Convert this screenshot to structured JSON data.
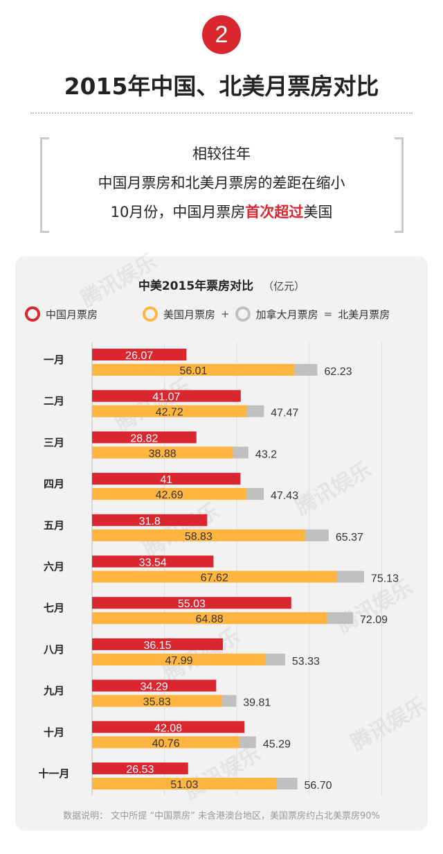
{
  "header": {
    "badge_number": "2",
    "title": "2015年中国、北美月票房对比"
  },
  "intro": {
    "line1": "相较往年",
    "line2": "中国月票房和北美月票房的差距在缩小",
    "line3_prefix": "10月份，中国月票房",
    "line3_highlight": "首次超过",
    "line3_suffix": "美国"
  },
  "watermark_text": "腾讯娱乐",
  "footnote": "数据说明： 文中所提 “中国票房” 未含港澳台地区，美国票房约占北美票房90%",
  "colors": {
    "china": "#d9262f",
    "usa": "#ffb53f",
    "canada": "#c0c0c0",
    "accent": "#d9262f"
  },
  "chart_data": {
    "type": "bar",
    "orientation": "horizontal",
    "title": "中美2015年票房对比",
    "unit": "（亿元）",
    "legend": {
      "china": "中国月票房",
      "usa": "美国月票房",
      "plus": "+",
      "canada": "加拿大月票房",
      "equals": "=",
      "north_america": "北美月票房"
    },
    "categories": [
      "一月",
      "二月",
      "三月",
      "四月",
      "五月",
      "六月",
      "七月",
      "八月",
      "九月",
      "十月",
      "十一月"
    ],
    "series": [
      {
        "name": "中国月票房",
        "values": [
          26.07,
          41.07,
          28.82,
          41,
          31.8,
          33.54,
          55.03,
          36.15,
          34.29,
          42.08,
          26.53
        ],
        "labels": [
          "26.07",
          "41.07",
          "28.82",
          "41",
          "31.8",
          "33.54",
          "55.03",
          "36.15",
          "34.29",
          "42.08",
          "26.53"
        ]
      },
      {
        "name": "美国月票房",
        "values": [
          56.01,
          42.72,
          38.88,
          42.69,
          58.83,
          67.62,
          64.88,
          47.99,
          35.83,
          40.76,
          51.03
        ],
        "labels": [
          "56.01",
          "42.72",
          "38.88",
          "42.69",
          "58.83",
          "67.62",
          "64.88",
          "47.99",
          "35.83",
          "40.76",
          "51.03"
        ]
      },
      {
        "name": "北美月票房",
        "values": [
          62.23,
          47.47,
          43.2,
          47.43,
          65.37,
          75.13,
          72.09,
          53.33,
          39.81,
          45.29,
          56.7
        ],
        "labels": [
          "62.23",
          "47.47",
          "43.2",
          "47.43",
          "65.37",
          "75.13",
          "72.09",
          "53.33",
          "39.81",
          "45.29",
          "56.70"
        ]
      }
    ],
    "xlim": [
      0,
      80
    ],
    "grid": true
  }
}
